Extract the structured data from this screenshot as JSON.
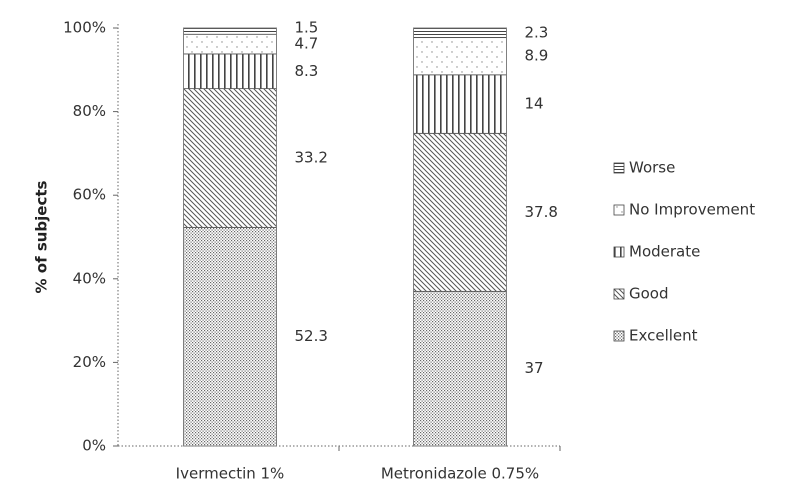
{
  "chart_data": {
    "type": "stacked_bar",
    "ylabel": "% of subjects",
    "categories": [
      "Ivermectin 1%",
      "Metronidazole 0.75%"
    ],
    "series": [
      {
        "name": "Excellent",
        "color": "#666666",
        "pattern": "dots",
        "values": [
          52.3,
          37
        ]
      },
      {
        "name": "Good",
        "color": "#555555",
        "pattern": "diagonal",
        "values": [
          33.2,
          37.8
        ]
      },
      {
        "name": "Moderate",
        "color": "#444444",
        "pattern": "vertical",
        "values": [
          8.3,
          14
        ]
      },
      {
        "name": "No Improvement",
        "color": "#888888",
        "pattern": "sparse-dots",
        "values": [
          4.7,
          8.9
        ]
      },
      {
        "name": "Worse",
        "color": "#444444",
        "pattern": "horizontal",
        "values": [
          1.5,
          2.3
        ]
      }
    ],
    "ylim": [
      0,
      100
    ],
    "yticks": [
      {
        "value": 0,
        "label": "0%"
      },
      {
        "value": 20,
        "label": "20%"
      },
      {
        "value": 40,
        "label": "40%"
      },
      {
        "value": 60,
        "label": "60%"
      },
      {
        "value": 80,
        "label": "80%"
      },
      {
        "value": 100,
        "label": "100%"
      }
    ],
    "legend": "right"
  }
}
